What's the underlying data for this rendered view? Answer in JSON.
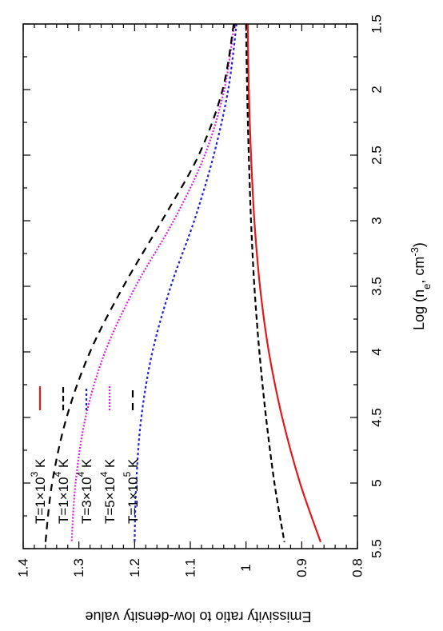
{
  "chart_data": {
    "type": "line",
    "orientation": "rotated-90-clockwise",
    "xlabel": {
      "base": "Log (n",
      "sub": "e",
      "mid": ", cm",
      "sup": "-3",
      "end": ")"
    },
    "ylabel": "Emissivity ratio to low-density value",
    "xlim": [
      1.5,
      5.5
    ],
    "ylim": [
      0.8,
      1.4
    ],
    "xticks": [
      "1.5",
      "2",
      "2.5",
      "3",
      "3.5",
      "4",
      "4.5",
      "5",
      "5.5"
    ],
    "yticks": [
      "0.8",
      "0.9",
      "1",
      "1.1",
      "1.2",
      "1.3",
      "1.4"
    ],
    "legend_position": "bottom-left",
    "series": [
      {
        "name": {
          "pre": "T=1×10",
          "sup": "3",
          "post": " K"
        },
        "color": "#e31a1c",
        "dash": "none",
        "x": [
          1.5,
          2.0,
          2.5,
          3.0,
          3.5,
          4.0,
          4.5,
          5.0,
          5.45
        ],
        "y": [
          0.997,
          0.995,
          0.991,
          0.985,
          0.975,
          0.959,
          0.935,
          0.903,
          0.866
        ]
      },
      {
        "name": {
          "pre": "T=1×10",
          "sup": "4",
          "post": " K"
        },
        "color": "#000000",
        "dash": "7,4",
        "x": [
          1.5,
          2.0,
          2.5,
          3.0,
          3.5,
          4.0,
          4.5,
          5.0,
          5.45
        ],
        "y": [
          1.0,
          0.998,
          0.995,
          0.991,
          0.985,
          0.976,
          0.964,
          0.949,
          0.931
        ]
      },
      {
        "name": {
          "pre": "T=3×10",
          "sup": "4",
          "post": " K"
        },
        "color": "#1f1fe0",
        "dash": "3,3",
        "x": [
          1.5,
          2.0,
          2.5,
          3.0,
          3.5,
          4.0,
          4.5,
          5.0,
          5.45
        ],
        "y": [
          1.017,
          1.032,
          1.058,
          1.093,
          1.135,
          1.168,
          1.188,
          1.197,
          1.2
        ]
      },
      {
        "name": {
          "pre": "T=5×10",
          "sup": "4",
          "post": " K"
        },
        "color": "#e020e0",
        "dash": "2,2",
        "x": [
          1.5,
          2.0,
          2.5,
          3.0,
          3.5,
          4.0,
          4.5,
          5.0,
          5.45
        ],
        "y": [
          1.021,
          1.039,
          1.074,
          1.13,
          1.198,
          1.253,
          1.288,
          1.306,
          1.313
        ]
      },
      {
        "name": {
          "pre": "T=1×10",
          "sup": "5",
          "post": " K"
        },
        "color": "#000000",
        "dash": "9,7",
        "x": [
          1.5,
          2.0,
          2.5,
          3.0,
          3.5,
          4.0,
          4.5,
          5.0,
          5.45
        ],
        "y": [
          1.022,
          1.042,
          1.085,
          1.151,
          1.22,
          1.28,
          1.322,
          1.348,
          1.36
        ]
      }
    ]
  }
}
